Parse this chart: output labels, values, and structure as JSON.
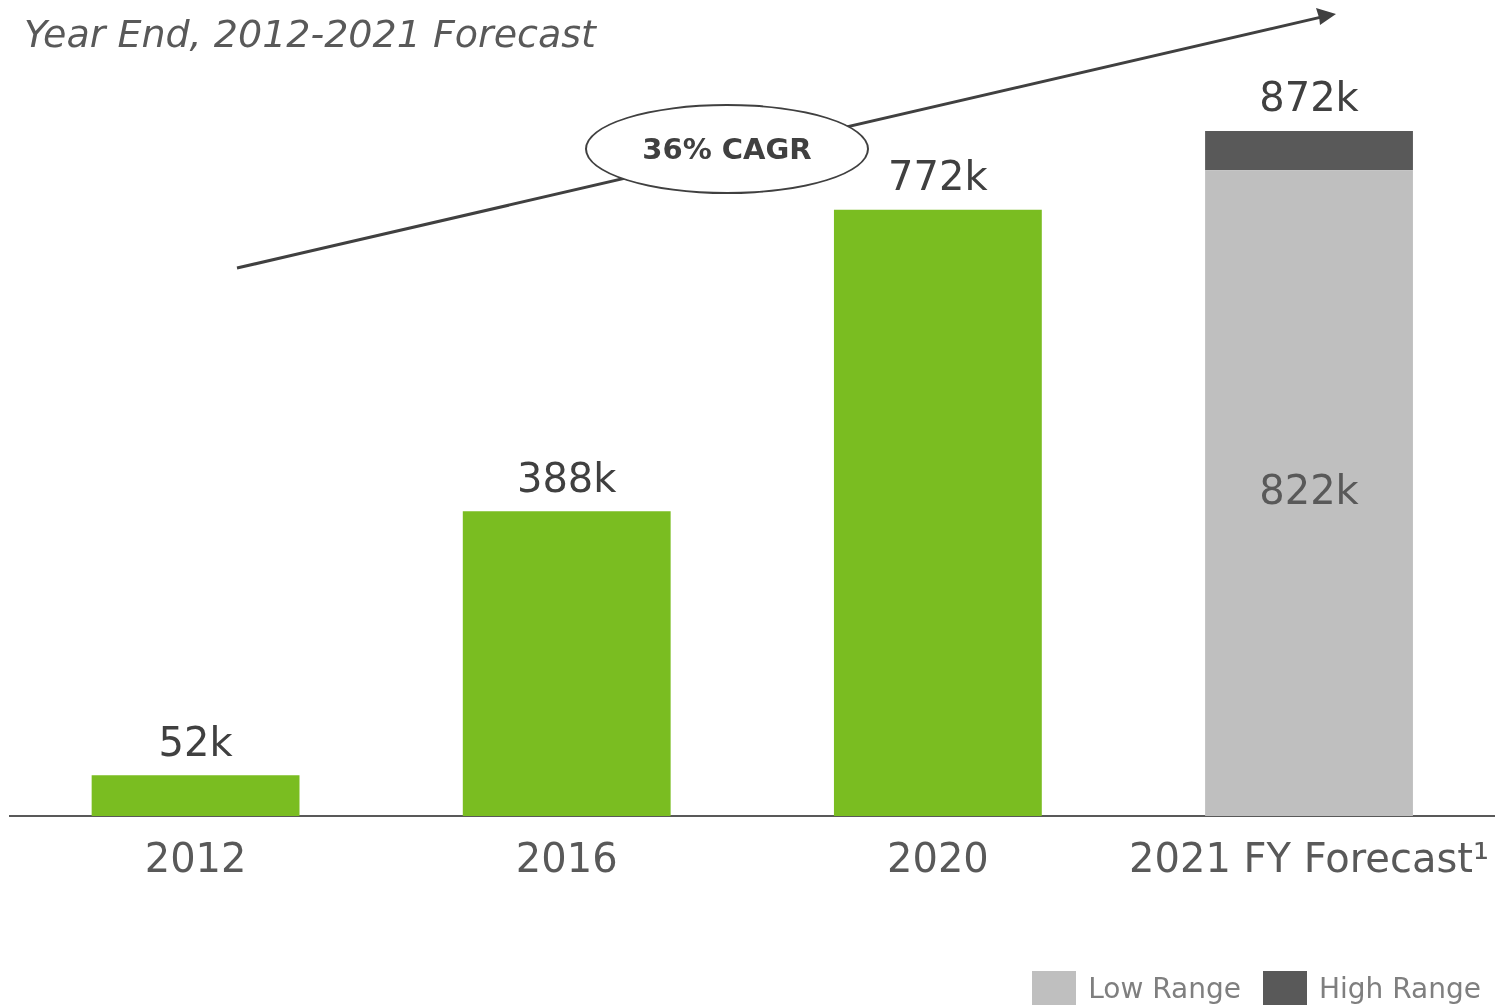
{
  "chart_data": {
    "type": "bar",
    "title": "Year End, 2012-2021 Forecast",
    "categories": [
      "2012",
      "2016",
      "2020",
      "2021 FY Forecast¹"
    ],
    "stacked": true,
    "legend": "bottom right",
    "annotations": [
      "36% CAGR"
    ],
    "totals": [
      null,
      null,
      null,
      "872k"
    ],
    "series": [
      {
        "color": "#7abd21",
        "values": [
          52,
          388,
          772,
          null
        ],
        "value_labels": [
          "52k",
          "388k",
          "772k",
          null
        ]
      },
      {
        "name": "Low Range",
        "color": "#bfbfbf",
        "values": [
          null,
          null,
          null,
          822
        ],
        "value_labels": [
          null,
          null,
          null,
          "822k"
        ]
      },
      {
        "name": "High Range",
        "color": "#595959",
        "values": [
          null,
          null,
          null,
          50
        ]
      }
    ]
  }
}
